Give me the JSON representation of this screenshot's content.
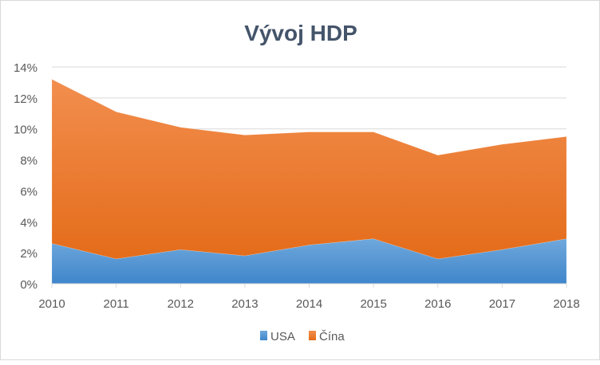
{
  "chart_data": {
    "type": "area",
    "stacked": true,
    "title": "Vývoj HDP",
    "xlabel": "",
    "ylabel": "",
    "categories": [
      "2010",
      "2011",
      "2012",
      "2013",
      "2014",
      "2015",
      "2016",
      "2017",
      "2018"
    ],
    "series": [
      {
        "name": "USA",
        "color": "#5b9bd5",
        "values": [
          2.6,
          1.6,
          2.2,
          1.8,
          2.5,
          2.9,
          1.6,
          2.2,
          2.9
        ]
      },
      {
        "name": "Čína",
        "color": "#ed7d31",
        "values": [
          10.6,
          9.5,
          7.9,
          7.8,
          7.3,
          6.9,
          6.7,
          6.8,
          6.6
        ]
      }
    ],
    "ylim": [
      0,
      14
    ],
    "yticks": [
      "0%",
      "2%",
      "4%",
      "6%",
      "8%",
      "10%",
      "12%",
      "14%"
    ],
    "ytick_values": [
      0,
      2,
      4,
      6,
      8,
      10,
      12,
      14
    ],
    "grid": true,
    "legend": "bottom"
  }
}
